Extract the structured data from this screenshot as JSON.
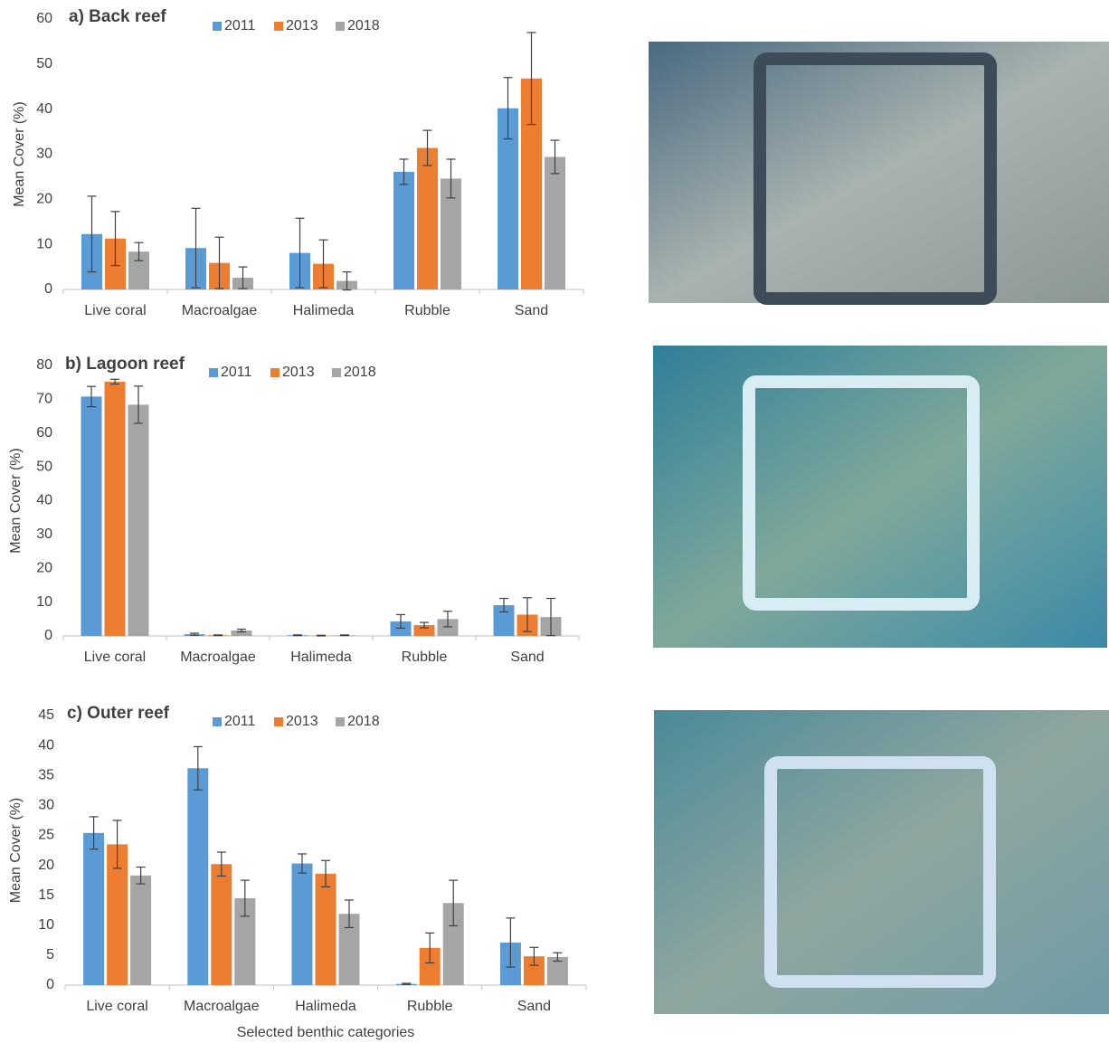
{
  "chart_data": [
    {
      "type": "bar",
      "title": "a) Back reef",
      "ylabel": "Mean Cover (%)",
      "categories": [
        "Live coral",
        "Macroalgae",
        "Halimeda",
        "Rubble",
        "Sand"
      ],
      "series": [
        {
          "name": "2011",
          "color": "#5b9bd5",
          "values": [
            12.3,
            9.2,
            8.1,
            26.1,
            40.2
          ],
          "errors": [
            8.4,
            8.8,
            7.7,
            2.8,
            6.8
          ]
        },
        {
          "name": "2013",
          "color": "#ed7d31",
          "values": [
            11.3,
            5.9,
            5.7,
            31.4,
            46.8
          ],
          "errors": [
            6.0,
            5.7,
            5.3,
            3.9,
            10.2
          ]
        },
        {
          "name": "2018",
          "color": "#a5a5a5",
          "values": [
            8.4,
            2.6,
            1.9,
            24.6,
            29.4
          ],
          "errors": [
            2.0,
            2.4,
            2.0,
            4.3,
            3.7
          ]
        }
      ],
      "ylim": [
        0,
        60
      ],
      "yticks": [
        0,
        10,
        20,
        30,
        40,
        50,
        60
      ]
    },
    {
      "type": "bar",
      "title": "b) Lagoon reef",
      "ylabel": "Mean Cover (%)",
      "categories": [
        "Live coral",
        "Macroalgae",
        "Halimeda",
        "Rubble",
        "Sand"
      ],
      "series": [
        {
          "name": "2011",
          "color": "#5b9bd5",
          "values": [
            70.8,
            0.5,
            0.2,
            4.3,
            9.1
          ],
          "errors": [
            3.0,
            0.3,
            0.1,
            2.0,
            2.0
          ]
        },
        {
          "name": "2013",
          "color": "#ed7d31",
          "values": [
            75.2,
            0.2,
            0.1,
            3.2,
            6.3
          ],
          "errors": [
            0.7,
            0.1,
            0.1,
            0.8,
            5.0
          ]
        },
        {
          "name": "2018",
          "color": "#a5a5a5",
          "values": [
            68.4,
            1.6,
            0.2,
            5.0,
            5.6
          ],
          "errors": [
            5.5,
            0.4,
            0.1,
            2.3,
            5.5
          ]
        }
      ],
      "ylim": [
        0,
        80
      ],
      "yticks": [
        0,
        10,
        20,
        30,
        40,
        50,
        60,
        70,
        80
      ]
    },
    {
      "type": "bar",
      "title": "c) Outer reef",
      "ylabel": "Mean Cover (%)",
      "xlabel": "Selected benthic categories",
      "categories": [
        "Live coral",
        "Macroalgae",
        "Halimeda",
        "Rubble",
        "Sand"
      ],
      "series": [
        {
          "name": "2011",
          "color": "#5b9bd5",
          "values": [
            25.4,
            36.2,
            20.3,
            0.2,
            7.1
          ],
          "errors": [
            2.7,
            3.6,
            1.6,
            0.1,
            4.1
          ]
        },
        {
          "name": "2013",
          "color": "#ed7d31",
          "values": [
            23.5,
            20.2,
            18.6,
            6.2,
            4.8
          ],
          "errors": [
            4.0,
            2.0,
            2.2,
            2.5,
            1.5
          ]
        },
        {
          "name": "2018",
          "color": "#a5a5a5",
          "values": [
            18.3,
            14.5,
            11.9,
            13.7,
            4.7
          ],
          "errors": [
            1.4,
            3.0,
            2.3,
            3.8,
            0.7
          ]
        }
      ],
      "ylim": [
        0,
        45
      ],
      "yticks": [
        0,
        5,
        10,
        15,
        20,
        25,
        30,
        35,
        40,
        45
      ]
    }
  ]
}
